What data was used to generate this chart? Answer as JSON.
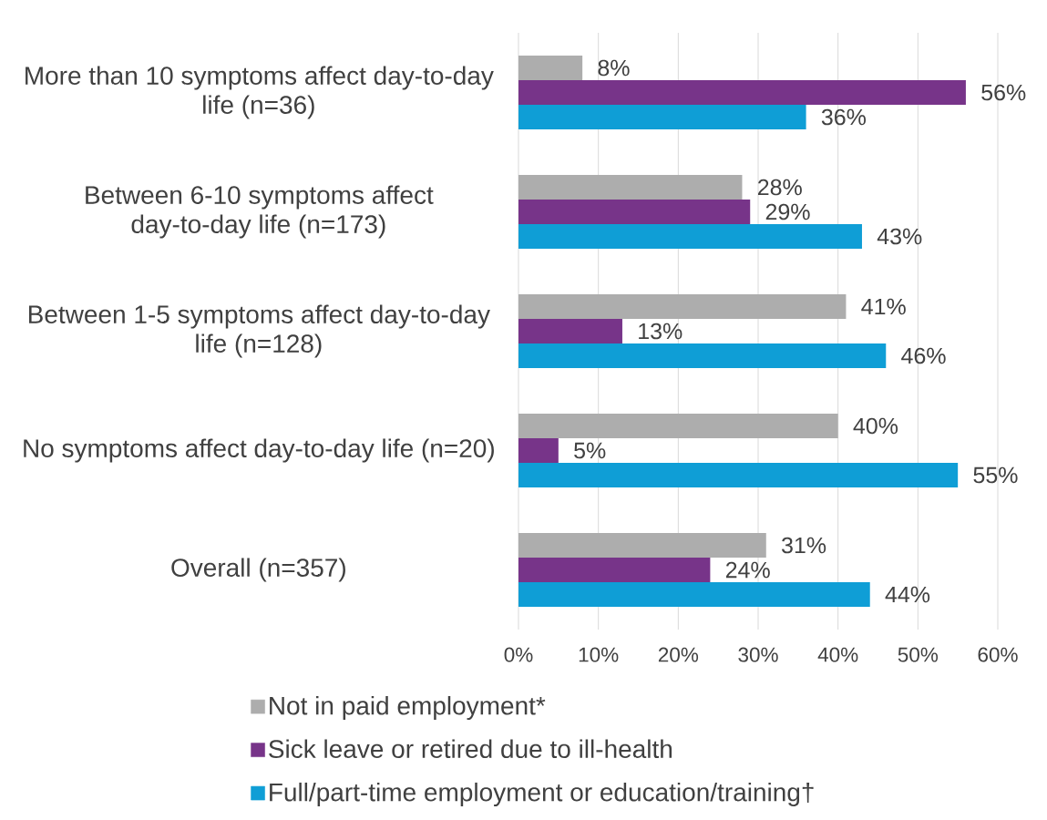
{
  "chart_data": {
    "type": "bar",
    "orientation": "horizontal",
    "categories": [
      "More than 10 symptoms affect day-to-day life (n=36)",
      "Between 6-10 symptoms affect day-to-day life (n=173)",
      "Between 1-5 symptoms affect day-to-day life (n=128)",
      "No symptoms affect day-to-day life (n=20)",
      "Overall (n=357)"
    ],
    "series": [
      {
        "name": "Not in paid employment*",
        "color": "#adadad",
        "values": [
          8,
          28,
          41,
          40,
          31
        ],
        "value_labels": [
          "8%",
          "28%",
          "41%",
          "40%",
          "31%"
        ]
      },
      {
        "name": "Sick leave or retired due to ill-health",
        "color": "#773489",
        "values": [
          56,
          29,
          13,
          5,
          24
        ],
        "value_labels": [
          "56%",
          "29%",
          "13%",
          "5%",
          "24%"
        ]
      },
      {
        "name": "Full/part-time employment or education/training†",
        "color": "#0f9ed6",
        "values": [
          36,
          43,
          46,
          55,
          44
        ],
        "value_labels": [
          "36%",
          "43%",
          "46%",
          "55%",
          "44%"
        ]
      }
    ],
    "xlim": [
      0,
      60
    ],
    "xticks": [
      {
        "value": 0,
        "label": "0%"
      },
      {
        "value": 10,
        "label": "10%"
      },
      {
        "value": 20,
        "label": "20%"
      },
      {
        "value": 30,
        "label": "30%"
      },
      {
        "value": 40,
        "label": "40%"
      },
      {
        "value": 50,
        "label": "50%"
      },
      {
        "value": 60,
        "label": "60%"
      }
    ],
    "grid": "x",
    "legend": "bottom"
  }
}
